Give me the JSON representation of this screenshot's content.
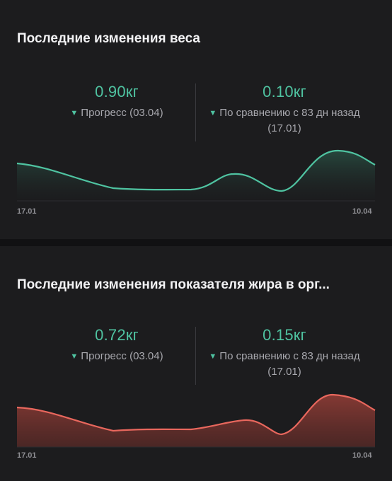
{
  "weight_card": {
    "title": "Последние изменения веса",
    "progress_value": "0.90кг",
    "progress_label": "Прогресс (03.04)",
    "comparison_value": "0.10кг",
    "comparison_label": "По сравнению с 83 дн назад (17.01)",
    "x_start": "17.01",
    "x_end": "10.04",
    "indicator_icon": "triangle-down-icon"
  },
  "fat_card": {
    "title": "Последние изменения показателя жира в орг...",
    "progress_value": "0.72кг",
    "progress_label": "Прогресс (03.04)",
    "comparison_value": "0.15кг",
    "comparison_label": "По сравнению с 83 дн назад (17.01)",
    "x_start": "17.01",
    "x_end": "10.04",
    "indicator_icon": "triangle-down-icon"
  },
  "colors": {
    "background": "#111113",
    "card": "#1c1c1e",
    "accent_green": "#4fc3a1",
    "accent_red": "#e8675d"
  }
}
